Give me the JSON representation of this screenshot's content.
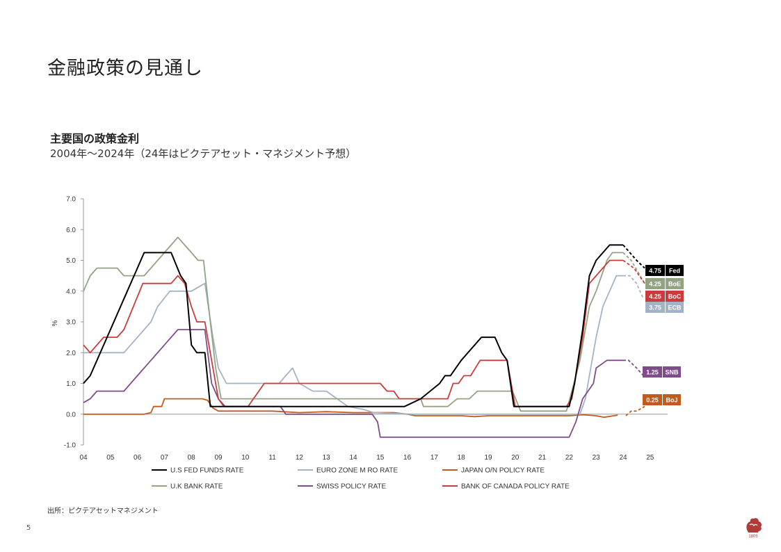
{
  "slide": {
    "title": "金融政策の見通し",
    "page_number": "5",
    "source": "出所：ピクテアセットマネジメント",
    "logo_year": "1805"
  },
  "chart_data": {
    "type": "line",
    "title": "主要国の政策金利",
    "subtitle": "2004年～2024年（24年はピクテアセット・マネジメント予想）",
    "ylabel": "%",
    "ylim": [
      -1.0,
      7.0
    ],
    "yticks": [
      "7.0",
      "6.0",
      "5.0",
      "4.0",
      "3.0",
      "2.0",
      "1.0",
      "0.0",
      "-1.0"
    ],
    "xlim": [
      2004,
      2025.6
    ],
    "xticks": [
      "04",
      "05",
      "06",
      "07",
      "08",
      "09",
      "10",
      "11",
      "12",
      "13",
      "14",
      "15",
      "16",
      "17",
      "18",
      "19",
      "20",
      "21",
      "22",
      "23",
      "24",
      "25"
    ],
    "forecast_start": 2024,
    "series": [
      {
        "key": "fed",
        "name": "U.S FED FUNDS RATE",
        "color": "#000000",
        "points": [
          [
            2004,
            1.0
          ],
          [
            2004.25,
            1.25
          ],
          [
            2004.5,
            1.75
          ],
          [
            2005,
            2.75
          ],
          [
            2005.5,
            3.75
          ],
          [
            2006,
            4.75
          ],
          [
            2006.25,
            5.25
          ],
          [
            2007.25,
            5.25
          ],
          [
            2007.6,
            4.5
          ],
          [
            2007.8,
            4.25
          ],
          [
            2008,
            2.25
          ],
          [
            2008.2,
            2.0
          ],
          [
            2008.5,
            2.0
          ],
          [
            2008.7,
            0.25
          ],
          [
            2015.9,
            0.25
          ],
          [
            2016.5,
            0.5
          ],
          [
            2017.2,
            1.0
          ],
          [
            2017.4,
            1.25
          ],
          [
            2017.6,
            1.25
          ],
          [
            2018,
            1.75
          ],
          [
            2018.5,
            2.25
          ],
          [
            2018.75,
            2.5
          ],
          [
            2019.25,
            2.5
          ],
          [
            2019.5,
            2.0
          ],
          [
            2019.7,
            1.75
          ],
          [
            2019.95,
            0.25
          ],
          [
            2022.0,
            0.25
          ],
          [
            2022.2,
            1.0
          ],
          [
            2022.5,
            2.75
          ],
          [
            2022.75,
            4.5
          ],
          [
            2023.0,
            5.0
          ],
          [
            2023.5,
            5.5
          ],
          [
            2023.9,
            5.5
          ],
          [
            2024,
            5.5
          ],
          [
            2024.25,
            5.25
          ],
          [
            2024.5,
            5.0
          ],
          [
            2024.8,
            4.75
          ]
        ],
        "label": {
          "value": "4.75",
          "name": "Fed"
        }
      },
      {
        "key": "boe",
        "name": "U.K BANK RATE",
        "color": "#93A382",
        "points": [
          [
            2004,
            4.0
          ],
          [
            2004.25,
            4.5
          ],
          [
            2004.5,
            4.75
          ],
          [
            2005.25,
            4.75
          ],
          [
            2005.5,
            4.5
          ],
          [
            2006.25,
            4.5
          ],
          [
            2006.5,
            4.75
          ],
          [
            2007,
            5.25
          ],
          [
            2007.5,
            5.75
          ],
          [
            2008,
            5.25
          ],
          [
            2008.25,
            5.0
          ],
          [
            2008.45,
            5.0
          ],
          [
            2008.7,
            3.0
          ],
          [
            2008.9,
            1.5
          ],
          [
            2009.1,
            0.5
          ],
          [
            2016.5,
            0.5
          ],
          [
            2016.6,
            0.25
          ],
          [
            2017.5,
            0.25
          ],
          [
            2017.85,
            0.5
          ],
          [
            2018.3,
            0.5
          ],
          [
            2018.6,
            0.75
          ],
          [
            2019.9,
            0.75
          ],
          [
            2020.2,
            0.1
          ],
          [
            2021.9,
            0.1
          ],
          [
            2022.1,
            0.75
          ],
          [
            2022.4,
            1.75
          ],
          [
            2022.75,
            3.5
          ],
          [
            2023.0,
            4.0
          ],
          [
            2023.4,
            5.0
          ],
          [
            2023.6,
            5.25
          ],
          [
            2024,
            5.25
          ],
          [
            2024.3,
            5.0
          ],
          [
            2024.8,
            4.25
          ]
        ],
        "label": {
          "value": "4.25",
          "name": "BoE"
        }
      },
      {
        "key": "boc",
        "name": "BANK OF CANADA POLICY RATE",
        "color": "#CC3B3B",
        "points": [
          [
            2004,
            2.25
          ],
          [
            2004.25,
            2.0
          ],
          [
            2004.75,
            2.5
          ],
          [
            2005.25,
            2.5
          ],
          [
            2005.5,
            2.75
          ],
          [
            2006.2,
            4.25
          ],
          [
            2007.25,
            4.25
          ],
          [
            2007.5,
            4.5
          ],
          [
            2007.75,
            4.25
          ],
          [
            2008,
            3.5
          ],
          [
            2008.2,
            3.0
          ],
          [
            2008.5,
            3.0
          ],
          [
            2008.8,
            1.5
          ],
          [
            2009.0,
            0.5
          ],
          [
            2009.2,
            0.25
          ],
          [
            2010.1,
            0.25
          ],
          [
            2010.3,
            0.5
          ],
          [
            2010.5,
            0.75
          ],
          [
            2010.7,
            1.0
          ],
          [
            2015.0,
            1.0
          ],
          [
            2015.25,
            0.75
          ],
          [
            2015.5,
            0.75
          ],
          [
            2015.7,
            0.5
          ],
          [
            2017.2,
            0.5
          ],
          [
            2017.5,
            0.5
          ],
          [
            2017.6,
            0.75
          ],
          [
            2017.7,
            1.0
          ],
          [
            2017.9,
            1.0
          ],
          [
            2018.1,
            1.25
          ],
          [
            2018.35,
            1.25
          ],
          [
            2018.7,
            1.75
          ],
          [
            2019.7,
            1.75
          ],
          [
            2020.0,
            0.25
          ],
          [
            2021.9,
            0.25
          ],
          [
            2022.1,
            0.5
          ],
          [
            2022.3,
            1.5
          ],
          [
            2022.5,
            2.5
          ],
          [
            2022.75,
            4.25
          ],
          [
            2023.0,
            4.5
          ],
          [
            2023.5,
            5.0
          ],
          [
            2023.9,
            5.0
          ],
          [
            2024,
            5.0
          ],
          [
            2024.4,
            4.75
          ],
          [
            2024.8,
            4.25
          ]
        ],
        "label": {
          "value": "4.25",
          "name": "BoC"
        }
      },
      {
        "key": "ecb",
        "name": "EURO ZONE M RO RATE",
        "color": "#A3B3C7",
        "points": [
          [
            2004,
            2.0
          ],
          [
            2005.5,
            2.0
          ],
          [
            2005.75,
            2.25
          ],
          [
            2006,
            2.5
          ],
          [
            2006.5,
            3.0
          ],
          [
            2006.75,
            3.5
          ],
          [
            2007.2,
            4.0
          ],
          [
            2008,
            4.0
          ],
          [
            2008.5,
            4.25
          ],
          [
            2008.8,
            2.5
          ],
          [
            2009.0,
            1.5
          ],
          [
            2009.3,
            1.0
          ],
          [
            2011.25,
            1.0
          ],
          [
            2011.5,
            1.25
          ],
          [
            2011.75,
            1.5
          ],
          [
            2012.0,
            1.0
          ],
          [
            2012.5,
            0.75
          ],
          [
            2013.0,
            0.75
          ],
          [
            2013.4,
            0.5
          ],
          [
            2013.8,
            0.25
          ],
          [
            2014.4,
            0.15
          ],
          [
            2014.75,
            0.05
          ],
          [
            2016.2,
            0.0
          ],
          [
            2022.4,
            0.0
          ],
          [
            2022.6,
            0.5
          ],
          [
            2022.8,
            1.5
          ],
          [
            2023.0,
            2.5
          ],
          [
            2023.25,
            3.5
          ],
          [
            2023.5,
            4.0
          ],
          [
            2023.75,
            4.5
          ],
          [
            2024,
            4.5
          ],
          [
            2024.25,
            4.5
          ],
          [
            2024.5,
            4.25
          ],
          [
            2024.75,
            3.75
          ]
        ],
        "label": {
          "value": "3.75",
          "name": "ECB"
        }
      },
      {
        "key": "snb",
        "name": "SWISS POLICY RATE",
        "color": "#7F4B8A",
        "points": [
          [
            2004,
            0.375
          ],
          [
            2004.25,
            0.5
          ],
          [
            2004.5,
            0.75
          ],
          [
            2005.5,
            0.75
          ],
          [
            2006,
            1.25
          ],
          [
            2006.5,
            1.75
          ],
          [
            2007,
            2.25
          ],
          [
            2007.5,
            2.75
          ],
          [
            2008.5,
            2.75
          ],
          [
            2008.75,
            1.0
          ],
          [
            2009.0,
            0.5
          ],
          [
            2009.25,
            0.25
          ],
          [
            2011.3,
            0.25
          ],
          [
            2011.5,
            0.0
          ],
          [
            2014.7,
            0.0
          ],
          [
            2014.9,
            -0.25
          ],
          [
            2015.0,
            -0.75
          ],
          [
            2022.0,
            -0.75
          ],
          [
            2022.25,
            -0.25
          ],
          [
            2022.5,
            0.5
          ],
          [
            2022.9,
            1.0
          ],
          [
            2023.0,
            1.5
          ],
          [
            2023.4,
            1.75
          ],
          [
            2024,
            1.75
          ],
          [
            2024.2,
            1.75
          ],
          [
            2024.5,
            1.5
          ],
          [
            2024.75,
            1.25
          ]
        ],
        "label": {
          "value": "1.25",
          "name": "SNB"
        }
      },
      {
        "key": "boj",
        "name": "JAPAN O/N POLICY RATE",
        "color": "#C45A1C",
        "points": [
          [
            2004,
            0.0
          ],
          [
            2006.25,
            0.0
          ],
          [
            2006.5,
            0.05
          ],
          [
            2006.6,
            0.25
          ],
          [
            2006.9,
            0.25
          ],
          [
            2007.0,
            0.5
          ],
          [
            2008.4,
            0.5
          ],
          [
            2008.6,
            0.45
          ],
          [
            2008.8,
            0.2
          ],
          [
            2009.0,
            0.1
          ],
          [
            2010.0,
            0.1
          ],
          [
            2010.5,
            0.1
          ],
          [
            2011.0,
            0.1
          ],
          [
            2012.0,
            0.05
          ],
          [
            2013.0,
            0.08
          ],
          [
            2014.0,
            0.05
          ],
          [
            2015.5,
            0.05
          ],
          [
            2016.0,
            0.0
          ],
          [
            2016.3,
            -0.05
          ],
          [
            2017.0,
            -0.05
          ],
          [
            2018.0,
            -0.05
          ],
          [
            2018.5,
            -0.08
          ],
          [
            2019.0,
            -0.05
          ],
          [
            2020.0,
            -0.05
          ],
          [
            2021.0,
            -0.05
          ],
          [
            2022.0,
            -0.05
          ],
          [
            2022.5,
            -0.02
          ],
          [
            2023.0,
            -0.05
          ],
          [
            2023.3,
            -0.1
          ],
          [
            2023.8,
            -0.03
          ],
          [
            2024.1,
            -0.05
          ],
          [
            2024.3,
            0.1
          ],
          [
            2024.5,
            0.1
          ],
          [
            2024.8,
            0.25
          ]
        ],
        "label": {
          "value": "0.25",
          "name": "BoJ"
        }
      }
    ],
    "legend": {
      "placement": "bottom",
      "rows": [
        [
          "fed",
          "ecb",
          "boj"
        ],
        [
          "boe",
          "snb",
          "boc"
        ]
      ]
    }
  }
}
